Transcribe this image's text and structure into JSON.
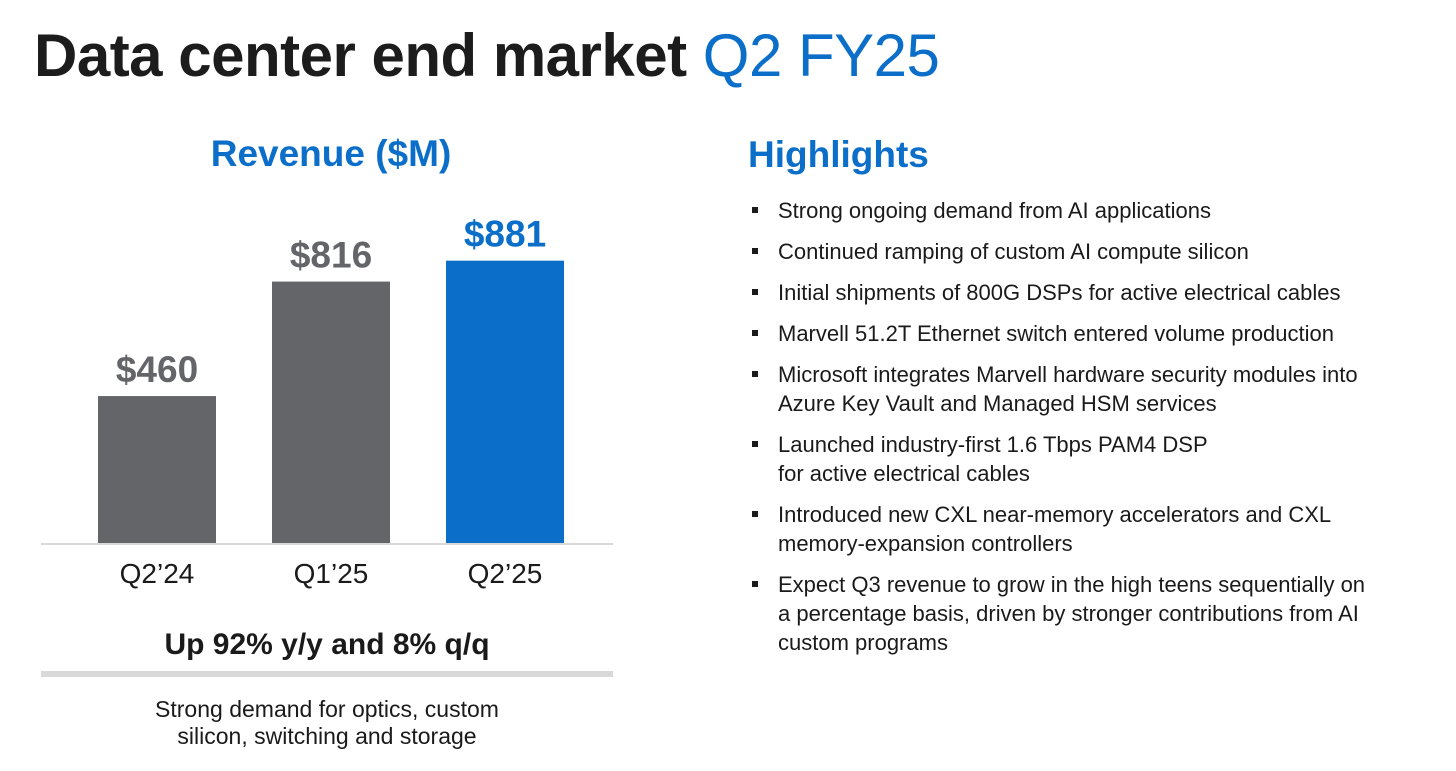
{
  "title": {
    "main": "Data center end market",
    "accent": "Q2 FY25"
  },
  "colors": {
    "accent": "#0b6fc9",
    "bar_gray": "#646569",
    "label_gray": "#646569",
    "rule_gray": "#d9d9d9",
    "text_dark": "#1a1a1a"
  },
  "chart_data": {
    "type": "bar",
    "title": "Revenue ($M)",
    "categories": [
      "Q2’24",
      "Q1’25",
      "Q2’25"
    ],
    "values": [
      460,
      816,
      881
    ],
    "data_labels": [
      "$460",
      "$816",
      "$881"
    ],
    "highlight_index": 2,
    "xlabel": "",
    "ylabel": "",
    "ylim": [
      0,
      1000
    ],
    "grid": false,
    "summary": "Up 92% y/y and 8% q/q",
    "footnote_lines": [
      "Strong demand for optics, custom",
      "silicon, switching and storage"
    ]
  },
  "highlights": {
    "title": "Highlights",
    "items": [
      {
        "lines": [
          "Strong ongoing demand from AI applications"
        ]
      },
      {
        "lines": [
          "Continued ramping of custom AI compute silicon"
        ]
      },
      {
        "lines": [
          "Initial shipments of 800G DSPs for active electrical cables"
        ]
      },
      {
        "lines": [
          "Marvell 51.2T Ethernet switch entered volume production"
        ]
      },
      {
        "lines": [
          "Microsoft integrates Marvell hardware security modules into",
          "Azure Key Vault and Managed HSM services"
        ]
      },
      {
        "lines": [
          "Launched industry-first 1.6 Tbps PAM4 DSP",
          "for active electrical cables"
        ]
      },
      {
        "lines": [
          "Introduced new CXL near-memory accelerators and CXL",
          "memory-expansion controllers"
        ]
      },
      {
        "lines": [
          "Expect Q3 revenue to grow in the high teens sequentially on",
          "a percentage basis, driven by stronger contributions from AI",
          "custom programs"
        ]
      }
    ]
  }
}
